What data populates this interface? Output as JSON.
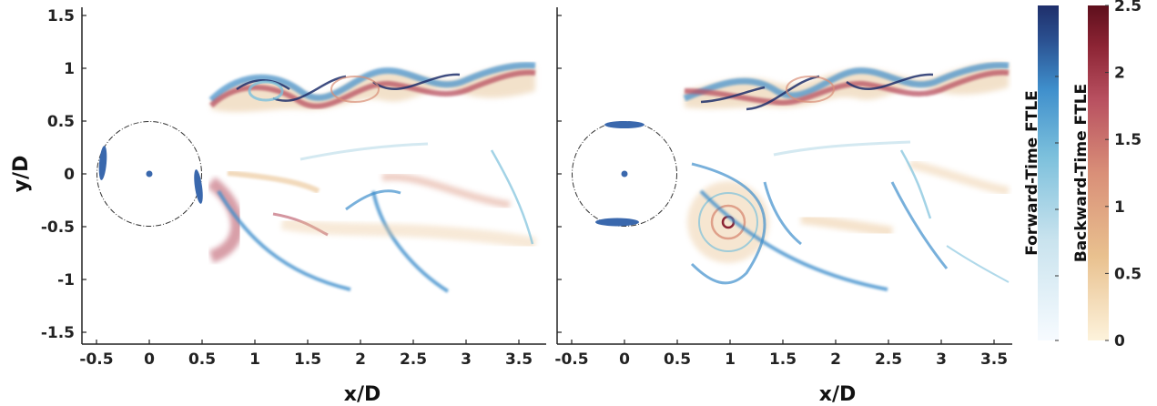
{
  "chart_data": [
    {
      "type": "heatmap",
      "panel": "left",
      "xlabel": "x/D",
      "ylabel": "y/D",
      "xlim": [
        -0.6,
        3.7
      ],
      "ylim": [
        -1.6,
        1.6
      ],
      "xticks": [
        -0.5,
        0,
        0.5,
        1,
        1.5,
        2,
        2.5,
        3,
        3.5
      ],
      "xtick_labels": [
        "-0.5",
        "0",
        "0.5",
        "1",
        "1.5",
        "2",
        "2.5",
        "3",
        "3.5"
      ],
      "yticks": [
        1.5,
        1,
        0.5,
        0,
        -0.5,
        -1,
        -1.5
      ],
      "ytick_labels": [
        "1.5",
        "1",
        "0.5",
        "0",
        "-0.5",
        "-1",
        "-1.5"
      ],
      "cylinder": {
        "center": [
          0,
          0
        ],
        "radius": 0.5
      },
      "actuators": [
        {
          "x": -0.44,
          "y": 0.1
        },
        {
          "x": 0.47,
          "y": -0.12
        }
      ]
    },
    {
      "type": "heatmap",
      "panel": "right",
      "xlabel": "x/D",
      "xlim": [
        -0.6,
        3.7
      ],
      "ylim": [
        -1.6,
        1.6
      ],
      "xticks": [
        -0.5,
        0,
        0.5,
        1,
        1.5,
        2,
        2.5,
        3,
        3.5
      ],
      "xtick_labels": [
        "-0.5",
        "0",
        "0.5",
        "1",
        "1.5",
        "2",
        "2.5",
        "3",
        "3.5"
      ],
      "cylinder": {
        "center": [
          0,
          0
        ],
        "radius": 0.5
      },
      "actuators": [
        {
          "x": 0.0,
          "y": 0.47
        },
        {
          "x": -0.05,
          "y": -0.46
        }
      ]
    }
  ],
  "colorbars": [
    {
      "label": "Forward-Time FTLE",
      "palette": [
        "#f7fbff",
        "#c9e3ee",
        "#7cc0dc",
        "#3f8fcc",
        "#2a4f8f",
        "#1f2f6b"
      ]
    },
    {
      "label": "Backward-Time FTLE",
      "palette": [
        "#fdf3dc",
        "#e9c18f",
        "#d98f78",
        "#b85060",
        "#8c2434",
        "#5e0f1c"
      ],
      "ticks": [
        0,
        0.5,
        1,
        1.5,
        2,
        2.5
      ],
      "tick_labels": [
        "0",
        "0.5",
        "1",
        "1.5",
        "2",
        "2.5"
      ]
    }
  ]
}
